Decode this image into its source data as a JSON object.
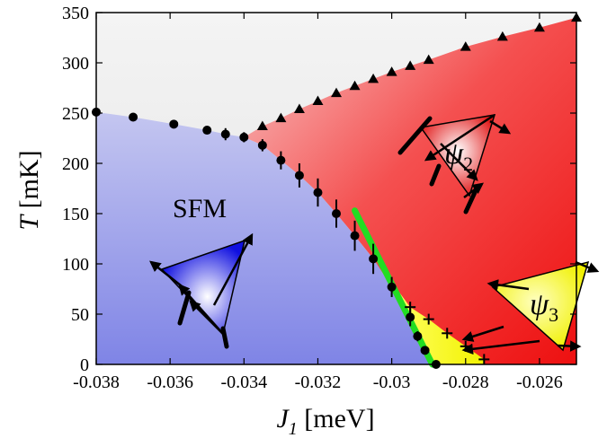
{
  "chart_data": {
    "type": "scatter",
    "title": "",
    "xlabel": "J",
    "xlabel_sub": "1",
    "xlabel_unit": " [meV]",
    "ylabel": "T",
    "ylabel_unit": " [mK]",
    "xlim": [
      -0.038,
      -0.025
    ],
    "ylim": [
      0,
      350
    ],
    "xticks": [
      -0.038,
      -0.036,
      -0.034,
      -0.032,
      -0.03,
      -0.028,
      -0.026
    ],
    "xtick_labels": [
      "-0.038",
      "-0.036",
      "-0.034",
      "-0.032",
      "-0.03",
      "-0.028",
      "-0.026"
    ],
    "yticks": [
      0,
      50,
      100,
      150,
      200,
      250,
      300,
      350
    ],
    "ytick_labels": [
      "0",
      "50",
      "100",
      "150",
      "200",
      "250",
      "300",
      "350"
    ],
    "grid": false,
    "regions": [
      {
        "label": "SFM",
        "color": "#8a8ee8"
      },
      {
        "label": "ψ",
        "sub": "2",
        "color": "#f02020"
      },
      {
        "label": "ψ",
        "sub": "3",
        "color": "#f0f000"
      }
    ],
    "series": [
      {
        "marker": "circle",
        "color": "#000000",
        "points": [
          {
            "x": -0.038,
            "y": 251,
            "err": 0
          },
          {
            "x": -0.037,
            "y": 246,
            "err": 0
          },
          {
            "x": -0.0359,
            "y": 239,
            "err": 0
          },
          {
            "x": -0.035,
            "y": 233,
            "err": 0
          },
          {
            "x": -0.0345,
            "y": 229,
            "err": 6
          },
          {
            "x": -0.034,
            "y": 226,
            "err": 5
          },
          {
            "x": -0.0335,
            "y": 218,
            "err": 6
          },
          {
            "x": -0.033,
            "y": 203,
            "err": 9
          },
          {
            "x": -0.0325,
            "y": 188,
            "err": 12
          },
          {
            "x": -0.032,
            "y": 171,
            "err": 14
          },
          {
            "x": -0.0315,
            "y": 150,
            "err": 14
          },
          {
            "x": -0.031,
            "y": 128,
            "err": 15
          },
          {
            "x": -0.0305,
            "y": 105,
            "err": 15
          },
          {
            "x": -0.03,
            "y": 77,
            "err": 10
          },
          {
            "x": -0.0295,
            "y": 47,
            "err": 9
          },
          {
            "x": -0.0293,
            "y": 28,
            "err": 5
          },
          {
            "x": -0.0291,
            "y": 14,
            "err": 4
          },
          {
            "x": -0.0288,
            "y": 0,
            "err": 0
          }
        ]
      },
      {
        "marker": "triangle",
        "color": "#000000",
        "points": [
          {
            "x": -0.0335,
            "y": 237
          },
          {
            "x": -0.033,
            "y": 245
          },
          {
            "x": -0.0325,
            "y": 254
          },
          {
            "x": -0.032,
            "y": 262
          },
          {
            "x": -0.0315,
            "y": 270
          },
          {
            "x": -0.031,
            "y": 277
          },
          {
            "x": -0.0305,
            "y": 284
          },
          {
            "x": -0.03,
            "y": 291
          },
          {
            "x": -0.0295,
            "y": 297
          },
          {
            "x": -0.029,
            "y": 303
          },
          {
            "x": -0.028,
            "y": 316
          },
          {
            "x": -0.027,
            "y": 326
          },
          {
            "x": -0.026,
            "y": 335
          },
          {
            "x": -0.025,
            "y": 345
          }
        ]
      },
      {
        "marker": "plus",
        "color": "#000000",
        "points": [
          {
            "x": -0.0295,
            "y": 57
          },
          {
            "x": -0.029,
            "y": 45
          },
          {
            "x": -0.0285,
            "y": 31
          },
          {
            "x": -0.028,
            "y": 18
          },
          {
            "x": -0.0275,
            "y": 5
          }
        ]
      }
    ],
    "green_line": [
      {
        "x": -0.031,
        "y": 153
      },
      {
        "x": -0.0289,
        "y": 0
      }
    ]
  }
}
